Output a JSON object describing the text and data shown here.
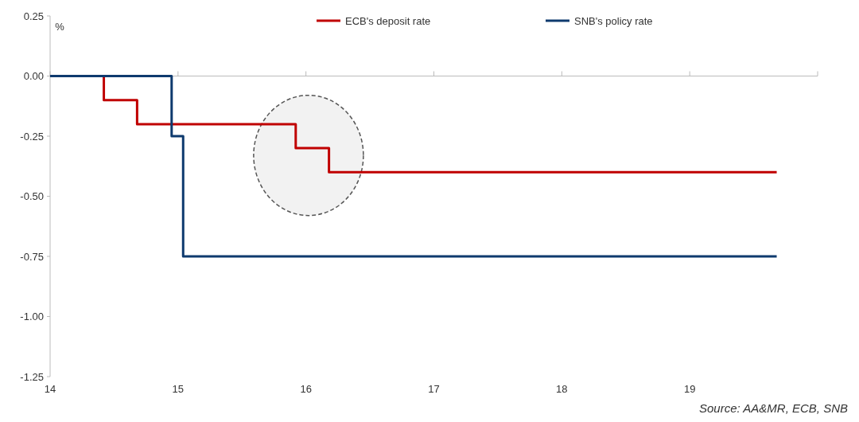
{
  "chart_data": {
    "type": "step",
    "ylabel": "%",
    "xlim": [
      14,
      20
    ],
    "xticks": [
      14,
      15,
      16,
      17,
      18,
      19,
      {
        "value": 20,
        "label": null
      }
    ],
    "ylim": [
      -1.25,
      0.25
    ],
    "yticks": [
      {
        "value": 0.25,
        "label": "0.25"
      },
      {
        "value": 0,
        "label": "0.00"
      },
      {
        "value": -0.25,
        "label": "-0.25"
      },
      {
        "value": -0.5,
        "label": "-0.50"
      },
      {
        "value": -0.75,
        "label": "-0.75"
      },
      {
        "value": -1,
        "label": "-1.00"
      },
      {
        "value": -1.25,
        "label": "-1.25"
      }
    ],
    "legend": "top",
    "line_style": "solid",
    "marker": "none",
    "series": [
      {
        "name": "ECB's deposit rate",
        "color": "#c00000",
        "x": [
          14,
          14.42,
          14.68,
          15.92,
          16.18,
          19.68
        ],
        "values": [
          0,
          -0.1,
          -0.2,
          -0.3,
          -0.4,
          -0.4
        ]
      },
      {
        "name": "SNB's policy rate",
        "color": "#0e3a6e",
        "x": [
          14,
          14.95,
          15.04,
          19.68
        ],
        "values": [
          0,
          -0.25,
          -0.75,
          -0.75
        ]
      }
    ],
    "annotations": [
      "Source: AA&MR, ECB, SNB"
    ]
  }
}
